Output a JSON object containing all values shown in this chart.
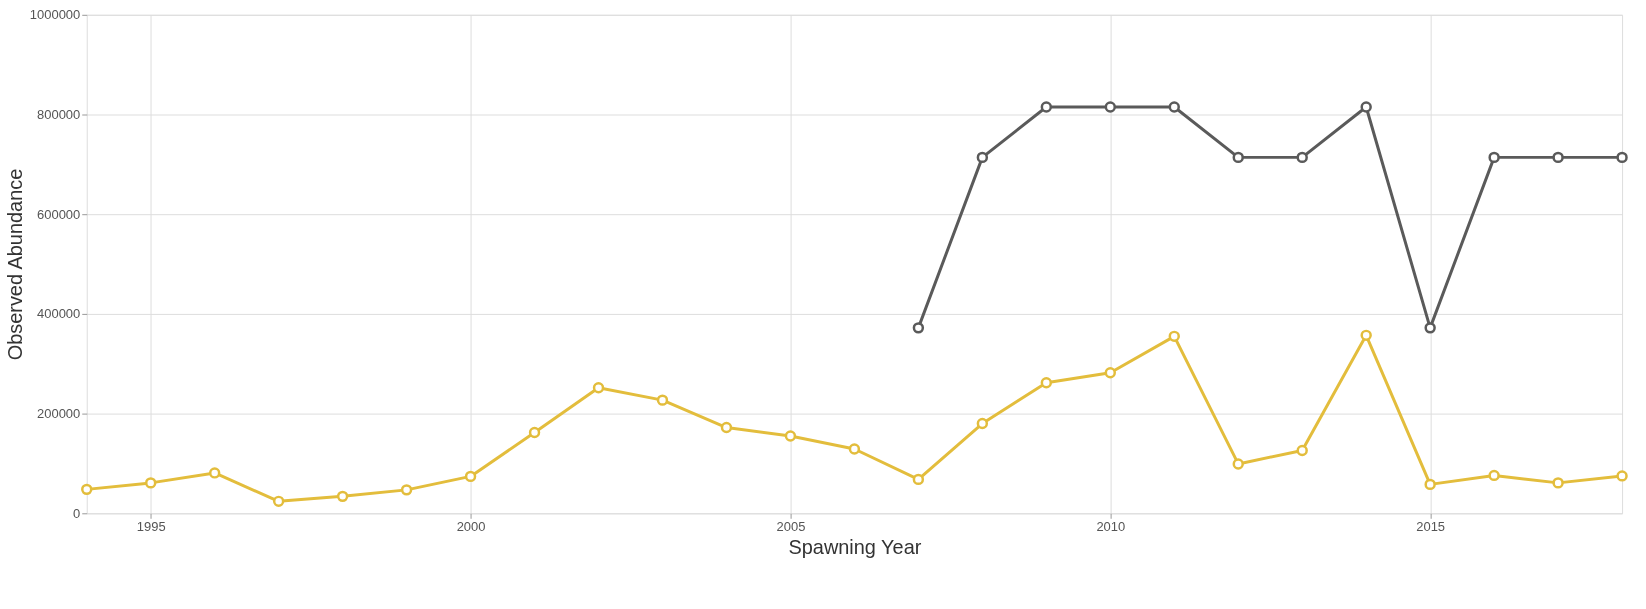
{
  "chart_data": {
    "type": "line",
    "xlabel": "Spawning Year",
    "ylabel": "Observed Abundance",
    "x": [
      1994,
      1995,
      1996,
      1997,
      1998,
      1999,
      2000,
      2001,
      2002,
      2003,
      2004,
      2005,
      2006,
      2007,
      2008,
      2009,
      2010,
      2011,
      2012,
      2013,
      2014,
      2015,
      2016,
      2017,
      2018
    ],
    "series": [
      {
        "color": "#e3bd3c",
        "values": [
          48000,
          61000,
          81000,
          24000,
          34000,
          47000,
          74000,
          162000,
          252000,
          227000,
          172000,
          155000,
          129000,
          68000,
          180000,
          262000,
          282000,
          355000,
          99000,
          126000,
          357000,
          58000,
          76000,
          61000,
          75000
        ]
      },
      {
        "color": "#5a5a5a",
        "values": [
          null,
          null,
          null,
          null,
          null,
          null,
          null,
          null,
          null,
          null,
          null,
          null,
          null,
          372000,
          714000,
          815000,
          815000,
          815000,
          714000,
          714000,
          815000,
          372000,
          714000,
          714000,
          714000
        ]
      }
    ],
    "xlim": [
      1994,
      2018
    ],
    "xticks": [
      1995,
      2000,
      2005,
      2010,
      2015
    ],
    "ylim": [
      0,
      1000000
    ],
    "yticks": [
      0,
      200000,
      400000,
      600000,
      800000,
      1000000
    ],
    "grid": true,
    "legend": false,
    "marker": "circle",
    "line_style": "solid"
  }
}
